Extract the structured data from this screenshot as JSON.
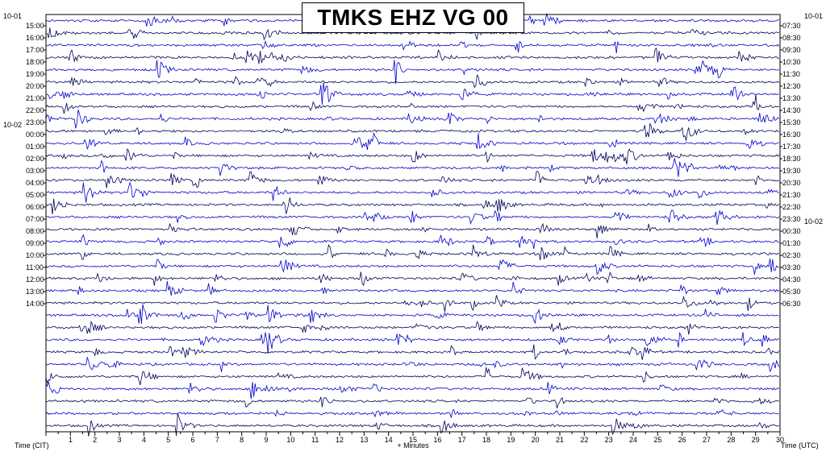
{
  "chart_data": {
    "type": "line",
    "title": "TMKS EHZ VG 00",
    "xlabel": "+ Minutes",
    "left_axis_label": "Time (CIT)",
    "right_axis_label": "Time (UTC)",
    "xlim": [
      0,
      30
    ],
    "x_ticks": [
      "1",
      "2",
      "3",
      "4",
      "5",
      "6",
      "7",
      "8",
      "9",
      "10",
      "11",
      "12",
      "13",
      "14",
      "15",
      "16",
      "17",
      "18",
      "19",
      "20",
      "21",
      "22",
      "23",
      "24",
      "25",
      "26",
      "27",
      "28",
      "29",
      "30"
    ],
    "left_rows": [
      "15:00",
      "16:00",
      "17:00",
      "18:00",
      "19:00",
      "20:00",
      "21:00",
      "22:00",
      "23:00",
      "00:00",
      "01:00",
      "02:00",
      "03:00",
      "04:00",
      "05:00",
      "06:00",
      "07:00",
      "08:00",
      "09:00",
      "10:00",
      "11:00",
      "12:00",
      "13:00",
      "14:00"
    ],
    "right_rows": [
      "07:30",
      "08:30",
      "09:30",
      "10:30",
      "11:30",
      "12:30",
      "13:30",
      "14:30",
      "15:30",
      "16:30",
      "17:30",
      "18:30",
      "19:30",
      "20:30",
      "21:30",
      "22:30",
      "23:30",
      "00:30",
      "01:30",
      "02:30",
      "03:30",
      "04:30",
      "05:30",
      "06:30"
    ],
    "left_dates": [
      {
        "row": 0,
        "text": "10-01"
      },
      {
        "row": 9,
        "text": "10-02"
      }
    ],
    "right_dates": [
      {
        "row": 0,
        "text": "10-01"
      },
      {
        "row": 17,
        "text": "10-02"
      }
    ],
    "trace_colors": [
      "#0000cd",
      "#00005a"
    ]
  }
}
